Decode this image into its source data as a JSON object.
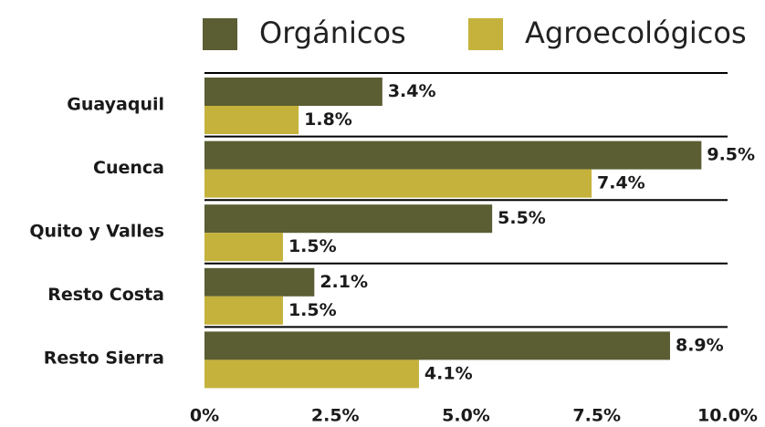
{
  "chart_data": {
    "type": "hbar",
    "categories": [
      "Guayaquil",
      "Cuenca",
      "Quito y Valles",
      "Resto Costa",
      "Resto Sierra"
    ],
    "series": [
      {
        "name": "Orgánicos",
        "color": "#5b5d32",
        "values": [
          3.4,
          9.5,
          5.5,
          2.1,
          8.9
        ],
        "value_labels": [
          "3.4%",
          "9.5%",
          "5.5%",
          "2.1%",
          "8.9%"
        ]
      },
      {
        "name": "Agroecológicos",
        "color": "#c5b23c",
        "values": [
          1.8,
          7.4,
          1.5,
          1.5,
          4.1
        ],
        "value_labels": [
          "1.8%",
          "7.4%",
          "1.5%",
          "1.5%",
          "4.1%"
        ]
      }
    ],
    "xlim": [
      0,
      10
    ],
    "xticks": [
      {
        "value": 0,
        "label": "0%"
      },
      {
        "value": 2.5,
        "label": "2.5%"
      },
      {
        "value": 5,
        "label": "5.0%"
      },
      {
        "value": 7.5,
        "label": "7.5%"
      },
      {
        "value": 10,
        "label": "10.0%"
      }
    ],
    "legend": "top"
  }
}
